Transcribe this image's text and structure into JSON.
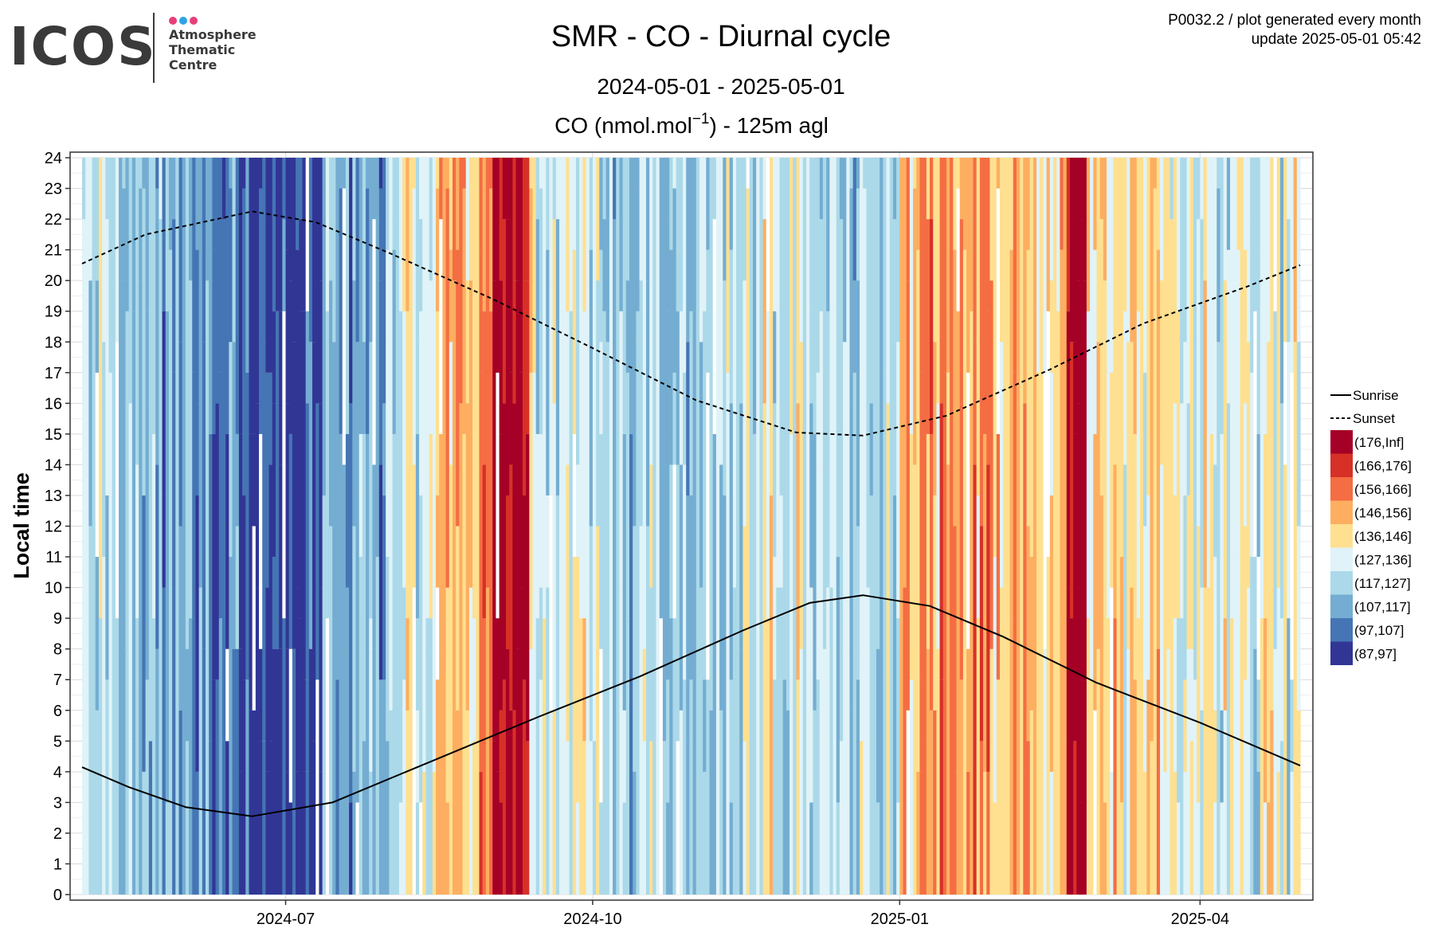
{
  "logo": {
    "word": "ICOS",
    "lines": [
      "Atmosphere",
      "Thematic",
      "Centre"
    ],
    "dot_colors": [
      "#e83e7a",
      "#2fa3e6",
      "#e83e7a"
    ]
  },
  "meta": {
    "line1": "P0032.2 / plot generated every month",
    "line2": "update  2025-05-01 05:42"
  },
  "chart_data": {
    "type": "heatmap",
    "title": "SMR - CO - Diurnal cycle",
    "subtitle": "2024-05-01 - 2025-05-01",
    "variable_prefix": "CO (nmol.mol",
    "variable_sup": "−1",
    "variable_suffix": ") - 125m agl",
    "xlabel": "",
    "ylabel": "Local time",
    "x_range": [
      "2024-05-01",
      "2025-05-01"
    ],
    "ylim": [
      0,
      24
    ],
    "x_ticks": [
      "2024-07",
      "2024-10",
      "2025-01",
      "2025-04"
    ],
    "y_ticks": [
      "0",
      "1",
      "2",
      "3",
      "4",
      "5",
      "6",
      "7",
      "8",
      "9",
      "10",
      "11",
      "12",
      "13",
      "14",
      "15",
      "16",
      "17",
      "18",
      "19",
      "20",
      "21",
      "22",
      "23",
      "24"
    ],
    "grid": true,
    "legend_position": "right",
    "line_legend": [
      {
        "label": "Sunrise",
        "style": "solid"
      },
      {
        "label": "Sunset",
        "style": "dashed"
      }
    ],
    "color_bins": [
      {
        "label": "(176,Inf]",
        "color": "#a50026"
      },
      {
        "label": "(166,176]",
        "color": "#d73027"
      },
      {
        "label": "(156,166]",
        "color": "#f46d43"
      },
      {
        "label": "(146,156]",
        "color": "#fdae61"
      },
      {
        "label": "(136,146]",
        "color": "#fee090"
      },
      {
        "label": "(127,136]",
        "color": "#e0f3f8"
      },
      {
        "label": "(117,127]",
        "color": "#abd9e9"
      },
      {
        "label": "(107,117]",
        "color": "#74add1"
      },
      {
        "label": "(97,107]",
        "color": "#4575b4"
      },
      {
        "label": "(87,97]",
        "color": "#313695"
      }
    ],
    "daily_typical_bin_index_by_period": [
      {
        "start": "2024-05-01",
        "end": "2024-05-20",
        "bin": 6
      },
      {
        "start": "2024-05-20",
        "end": "2024-06-10",
        "bin": 7
      },
      {
        "start": "2024-06-10",
        "end": "2024-06-20",
        "bin": 8
      },
      {
        "start": "2024-06-20",
        "end": "2024-06-30",
        "bin": 9
      },
      {
        "start": "2024-06-30",
        "end": "2024-07-12",
        "bin": 9
      },
      {
        "start": "2024-07-12",
        "end": "2024-07-31",
        "bin": 7
      },
      {
        "start": "2024-07-31",
        "end": "2024-08-15",
        "bin": 5
      },
      {
        "start": "2024-08-15",
        "end": "2024-09-01",
        "bin": 3
      },
      {
        "start": "2024-09-01",
        "end": "2024-09-12",
        "bin": 0
      },
      {
        "start": "2024-09-12",
        "end": "2024-10-01",
        "bin": 5
      },
      {
        "start": "2024-10-01",
        "end": "2024-11-15",
        "bin": 6
      },
      {
        "start": "2024-11-15",
        "end": "2024-12-15",
        "bin": 5
      },
      {
        "start": "2024-12-15",
        "end": "2025-01-01",
        "bin": 6
      },
      {
        "start": "2025-01-01",
        "end": "2025-02-10",
        "bin": 3
      },
      {
        "start": "2025-02-10",
        "end": "2025-02-20",
        "bin": 4
      },
      {
        "start": "2025-02-20",
        "end": "2025-02-26",
        "bin": 0
      },
      {
        "start": "2025-02-26",
        "end": "2025-03-25",
        "bin": 4
      },
      {
        "start": "2025-03-25",
        "end": "2025-05-01",
        "bin": 5
      }
    ],
    "sunrise_hours": [
      {
        "date": "2024-05-01",
        "value": 4.15
      },
      {
        "date": "2024-05-15",
        "value": 3.5
      },
      {
        "date": "2024-06-01",
        "value": 2.85
      },
      {
        "date": "2024-06-21",
        "value": 2.55
      },
      {
        "date": "2024-07-15",
        "value": 3.0
      },
      {
        "date": "2024-08-15",
        "value": 4.4
      },
      {
        "date": "2024-09-15",
        "value": 5.8
      },
      {
        "date": "2024-10-15",
        "value": 7.1
      },
      {
        "date": "2024-11-15",
        "value": 8.6
      },
      {
        "date": "2024-12-05",
        "value": 9.5
      },
      {
        "date": "2024-12-21",
        "value": 9.75
      },
      {
        "date": "2025-01-10",
        "value": 9.4
      },
      {
        "date": "2025-02-01",
        "value": 8.4
      },
      {
        "date": "2025-03-01",
        "value": 6.9
      },
      {
        "date": "2025-04-01",
        "value": 5.6
      },
      {
        "date": "2025-05-01",
        "value": 4.2
      }
    ],
    "sunset_hours": [
      {
        "date": "2024-05-01",
        "value": 20.55
      },
      {
        "date": "2024-05-20",
        "value": 21.5
      },
      {
        "date": "2024-06-21",
        "value": 22.25
      },
      {
        "date": "2024-07-10",
        "value": 21.9
      },
      {
        "date": "2024-08-01",
        "value": 20.9
      },
      {
        "date": "2024-09-01",
        "value": 19.4
      },
      {
        "date": "2024-10-01",
        "value": 17.8
      },
      {
        "date": "2024-11-01",
        "value": 16.1
      },
      {
        "date": "2024-12-01",
        "value": 15.05
      },
      {
        "date": "2024-12-21",
        "value": 14.95
      },
      {
        "date": "2025-01-15",
        "value": 15.6
      },
      {
        "date": "2025-02-15",
        "value": 17.1
      },
      {
        "date": "2025-03-15",
        "value": 18.6
      },
      {
        "date": "2025-04-15",
        "value": 19.8
      },
      {
        "date": "2025-05-01",
        "value": 20.5
      }
    ]
  }
}
